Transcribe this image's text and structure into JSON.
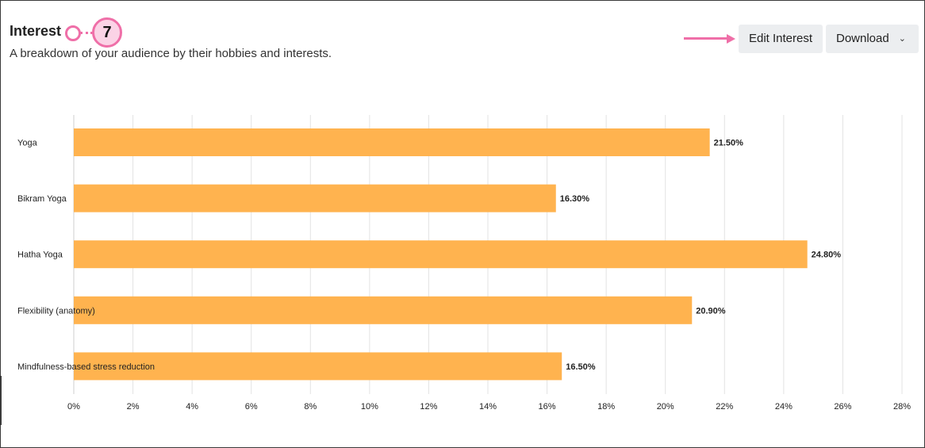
{
  "header": {
    "title": "Interest",
    "subtitle": "A breakdown of your audience by their hobbies and interests.",
    "callout_number": "7"
  },
  "toolbar": {
    "edit_label": "Edit Interest",
    "download_label": "Download",
    "download_chevron": "⌄"
  },
  "colors": {
    "bar": "#ffb34f",
    "grid": "#e3e3e3",
    "accent": "#ef6fa8"
  },
  "chart_data": {
    "type": "bar",
    "orientation": "horizontal",
    "categories": [
      "Yoga",
      "Bikram Yoga",
      "Hatha Yoga",
      "Flexibility (anatomy)",
      "Mindfulness-based stress reduction"
    ],
    "values": [
      21.5,
      16.3,
      24.8,
      20.9,
      16.5
    ],
    "value_labels": [
      "21.50%",
      "16.30%",
      "24.80%",
      "20.90%",
      "16.50%"
    ],
    "xlim": [
      0,
      28
    ],
    "xticks": [
      "0%",
      "2%",
      "4%",
      "6%",
      "8%",
      "10%",
      "12%",
      "14%",
      "16%",
      "18%",
      "20%",
      "22%",
      "24%",
      "26%",
      "28%"
    ],
    "grid": true,
    "legend": "none"
  }
}
